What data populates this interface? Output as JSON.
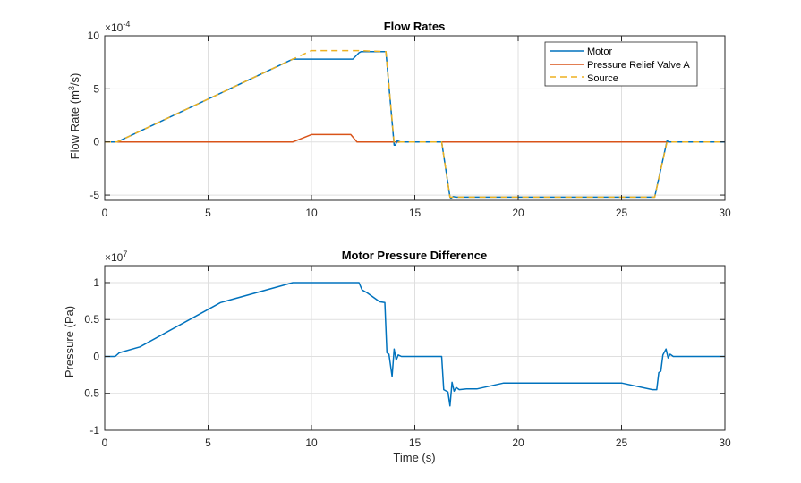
{
  "chart_data": [
    {
      "type": "line",
      "title": "Flow Rates",
      "xlabel": "",
      "ylabel": "Flow  Rate  (m³/s)",
      "ylabel_parts": {
        "pre": "Flow  Rate  (m",
        "sup": "3",
        "post": "/s)"
      },
      "exponent_label": {
        "base": "×10",
        "exp": "-4"
      },
      "xlim": [
        0,
        30
      ],
      "ylim": [
        -5.5,
        10
      ],
      "xticks": [
        0,
        5,
        10,
        15,
        20,
        25,
        30
      ],
      "xtick_labels": [
        "0",
        "5",
        "10",
        "15",
        "20",
        "25",
        "30"
      ],
      "yticks": [
        -5,
        0,
        5,
        10
      ],
      "ytick_labels": [
        "-5",
        "0",
        "5",
        "10"
      ],
      "grid": true,
      "legend_position": "top-right",
      "series": [
        {
          "name": "Motor",
          "color": "#0072BD",
          "style": "solid",
          "x": [
            0,
            0.6,
            9.1,
            12.0,
            12.3,
            12.4,
            13.6,
            14.0,
            14.05,
            14.15,
            14.3,
            16.3,
            16.7,
            16.75,
            16.85,
            17.0,
            26.6,
            27.2,
            27.3,
            30
          ],
          "y": [
            0,
            0,
            7.8,
            7.8,
            8.4,
            8.5,
            8.5,
            -0.3,
            -0.3,
            0.1,
            0,
            0,
            -5.2,
            -5.3,
            -5.15,
            -5.2,
            -5.2,
            0.1,
            0,
            0
          ]
        },
        {
          "name": "Pressure Relief Valve A",
          "color": "#D95319",
          "style": "solid",
          "x": [
            0,
            9.1,
            10.0,
            11.9,
            12.2,
            30
          ],
          "y": [
            0,
            0,
            0.7,
            0.7,
            0,
            0
          ]
        },
        {
          "name": "Source",
          "color": "#EDB120",
          "style": "dashed",
          "x": [
            0,
            0.6,
            9.1,
            10.0,
            12.3,
            13.6,
            14.0,
            14.3,
            16.3,
            16.7,
            26.6,
            27.2,
            30
          ],
          "y": [
            0,
            0,
            7.8,
            8.6,
            8.6,
            8.5,
            -0.1,
            0,
            0,
            -5.2,
            -5.2,
            0,
            0
          ]
        }
      ]
    },
    {
      "type": "line",
      "title": "Motor Pressure Difference",
      "xlabel": "Time (s)",
      "ylabel": "Pressure (Pa)",
      "exponent_label": {
        "base": "×10",
        "exp": "7"
      },
      "xlim": [
        0,
        30
      ],
      "ylim": [
        -1,
        1.23
      ],
      "xticks": [
        0,
        5,
        10,
        15,
        20,
        25,
        30
      ],
      "xtick_labels": [
        "0",
        "5",
        "10",
        "15",
        "20",
        "25",
        "30"
      ],
      "yticks": [
        -1,
        -0.5,
        0,
        0.5,
        1
      ],
      "ytick_labels": [
        "-1",
        "-0.5",
        "0",
        "0.5",
        "1"
      ],
      "grid": true,
      "series": [
        {
          "name": "Motor",
          "color": "#0072BD",
          "style": "solid",
          "x": [
            0,
            0.5,
            0.7,
            1.7,
            5.6,
            9.1,
            12.3,
            12.45,
            12.7,
            13.3,
            13.55,
            13.65,
            13.75,
            13.9,
            14.0,
            14.1,
            14.2,
            14.35,
            14.5,
            16.3,
            16.4,
            16.6,
            16.7,
            16.8,
            16.9,
            17.0,
            17.15,
            17.5,
            18.0,
            19.3,
            25.0,
            26.5,
            26.7,
            26.8,
            26.9,
            27.0,
            27.15,
            27.25,
            27.35,
            27.5,
            30
          ],
          "y": [
            0,
            0,
            0.05,
            0.13,
            0.73,
            1.0,
            1.0,
            0.9,
            0.86,
            0.74,
            0.73,
            0.05,
            0.03,
            -0.27,
            0.1,
            -0.05,
            0.02,
            0.0,
            0.0,
            0.0,
            -0.45,
            -0.48,
            -0.67,
            -0.35,
            -0.47,
            -0.42,
            -0.45,
            -0.44,
            -0.44,
            -0.36,
            -0.36,
            -0.45,
            -0.45,
            -0.22,
            -0.2,
            0.02,
            0.1,
            -0.02,
            0.03,
            0.0,
            0.0
          ]
        }
      ]
    }
  ]
}
